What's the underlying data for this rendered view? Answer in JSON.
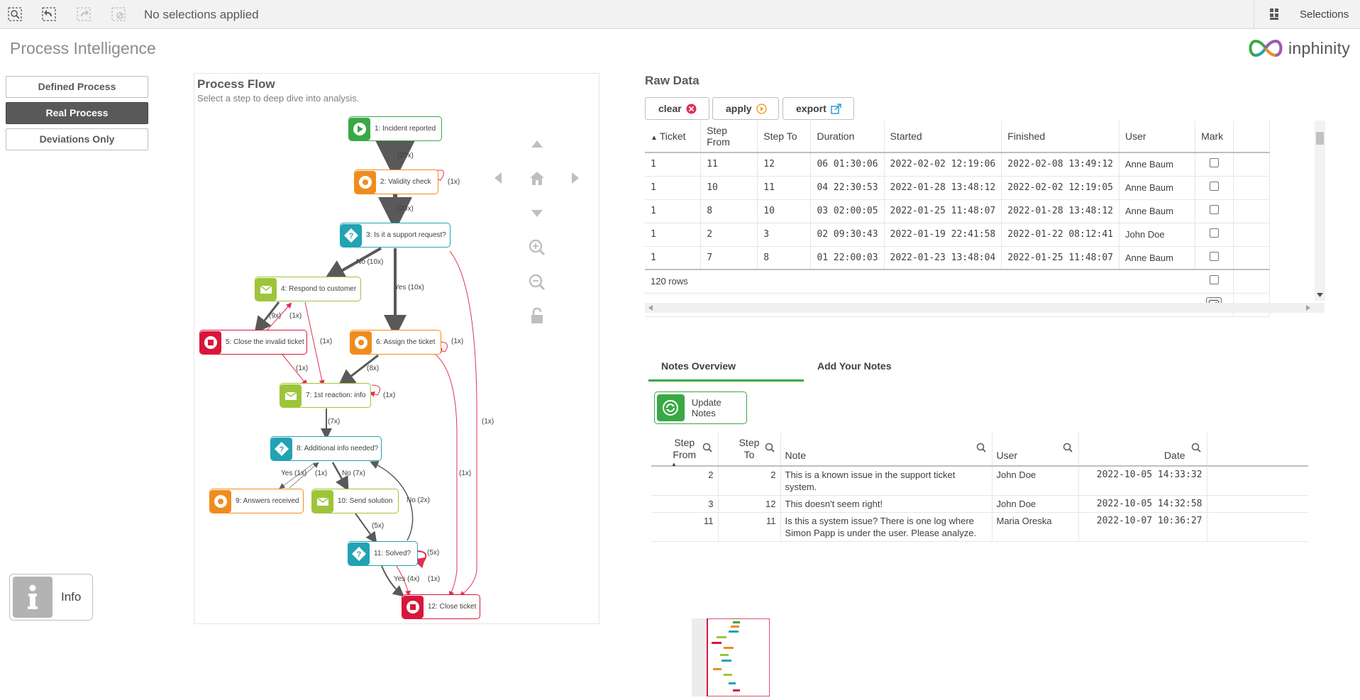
{
  "toolbar": {
    "selection_status": "No selections applied",
    "selections_label": "Selections"
  },
  "app": {
    "title": "Process Intelligence",
    "logo_text": "inphinity"
  },
  "nav": {
    "defined": "Defined Process",
    "real": "Real Process",
    "deviations": "Deviations Only"
  },
  "process_flow": {
    "title": "Process Flow",
    "subtitle": "Select a step to deep dive into analysis.",
    "nodes": {
      "n1": "1: Incident reported",
      "n2": "2: Validity check",
      "n3": "3: Is it a support request?",
      "n4": "4: Respond to customer",
      "n5": "5: Close the invalid ticket",
      "n6": "6: Assign the ticket",
      "n7": "7: 1st reaction: info",
      "n8": "8: Additional info needed?",
      "n9": "9: Answers received",
      "n10": "10: Send solution",
      "n11": "11: Solved?",
      "n12": "12: Close ticket"
    },
    "edges": {
      "e1_2": "(20x)",
      "e2_2": "(1x)",
      "e2_3": "(20x)",
      "e3_4": "No (10x)",
      "e3_6": "Yes (10x)",
      "e4_5": "(9x)",
      "e5_4": "(1x)",
      "e4_7": "(1x)",
      "e5_7": "(1x)",
      "e6_6": "(1x)",
      "e6_7": "(8x)",
      "e7_7": "(1x)",
      "e7_8": "(7x)",
      "e8_9": "Yes (1x)",
      "e9_8": "(1x)",
      "e8_10": "No (7x)",
      "e11_8": "No (2x)",
      "e10_11": "(5x)",
      "e11_11": "(5x)",
      "e11_12": "Yes (4x)",
      "e11_12b": "(1x)",
      "e3_12": "(1x)",
      "e6_12": "(1x)"
    }
  },
  "raw_data": {
    "title": "Raw Data",
    "buttons": {
      "clear": "clear",
      "apply": "apply",
      "export": "export"
    },
    "columns": [
      "Ticket",
      "Step From",
      "Step To",
      "Duration",
      "Started",
      "Finished",
      "User",
      "Mark"
    ],
    "rows": [
      [
        "1",
        "11",
        "12",
        "06 01:30:06",
        "2022-02-02 12:19:06",
        "2022-02-08 13:49:12",
        "Anne Baum"
      ],
      [
        "1",
        "10",
        "11",
        "04 22:30:53",
        "2022-01-28 13:48:12",
        "2022-02-02 12:19:05",
        "Anne Baum"
      ],
      [
        "1",
        "8",
        "10",
        "03 02:00:05",
        "2022-01-25 11:48:07",
        "2022-01-28 13:48:12",
        "Anne Baum"
      ],
      [
        "1",
        "2",
        "3",
        "02 09:30:43",
        "2022-01-19 22:41:58",
        "2022-01-22 08:12:41",
        "John Doe"
      ],
      [
        "1",
        "7",
        "8",
        "01 22:00:03",
        "2022-01-23 13:48:04",
        "2022-01-25 11:48:07",
        "Anne Baum"
      ]
    ],
    "row_count": "120 rows"
  },
  "notes": {
    "tab_overview": "Notes Overview",
    "tab_add": "Add Your Notes",
    "update_button": "Update Notes",
    "columns": {
      "step_from": "Step From",
      "step_to": "Step To",
      "note": "Note",
      "user": "User",
      "date": "Date"
    },
    "rows": [
      [
        "2",
        "2",
        "This is a known issue in the support ticket system.",
        "John Doe",
        "2022-10-05 14:33:32"
      ],
      [
        "3",
        "12",
        "This doesn't seem right!",
        "John Doe",
        "2022-10-05 14:32:58"
      ],
      [
        "11",
        "11",
        "Is this a system issue? There is one log where Simon Papp is under the user. Please analyze.",
        "Maria Oreska",
        "2022-10-07 10:36:27"
      ]
    ]
  },
  "info": {
    "label": "Info"
  },
  "colors": {
    "green": "#3aa845",
    "orange": "#f08c1f",
    "teal": "#21a3b3",
    "lime": "#9cc53a",
    "red": "#d8163b"
  }
}
